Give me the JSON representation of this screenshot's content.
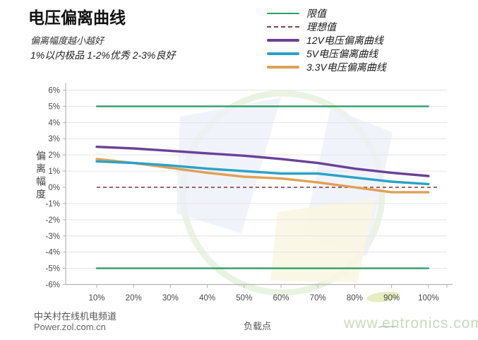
{
  "header": {
    "title": "电压偏离曲线",
    "subtitle": "偏离幅度越小越好",
    "note": "1%以内极品 1-2%优秀  2-3%良好"
  },
  "legend": {
    "items": [
      {
        "label": "限值",
        "color": "#2d9e68",
        "line_style": "solid",
        "thickness": 2
      },
      {
        "label": "理想值",
        "color": "#7d4545",
        "line_style": "dashed",
        "thickness": 2
      },
      {
        "label": "12V电压偏离曲线",
        "color": "#6b4199",
        "line_style": "solid",
        "thickness": 4
      },
      {
        "label": "5V电压偏离曲线",
        "color": "#29a3c8",
        "line_style": "solid",
        "thickness": 4
      },
      {
        "label": "3.3V电压偏离曲线",
        "color": "#dfa055",
        "line_style": "solid",
        "thickness": 4
      }
    ]
  },
  "chart_data": {
    "type": "line",
    "title": "电压偏离曲线",
    "xlabel": "负载点",
    "ylabel": "偏离幅度",
    "ylim": [
      -6,
      6
    ],
    "grid": true,
    "legend_position": "top-right",
    "x": [
      10,
      20,
      30,
      40,
      50,
      60,
      70,
      80,
      90,
      100
    ],
    "x_tick_labels": [
      "10%",
      "20%",
      "30%",
      "40%",
      "50%",
      "60%",
      "70%",
      "80%",
      "90%",
      "100%"
    ],
    "y_ticks": [
      {
        "value": 6,
        "label": "6%"
      },
      {
        "value": 5,
        "label": "5%"
      },
      {
        "value": 4,
        "label": "4%"
      },
      {
        "value": 3,
        "label": "3%"
      },
      {
        "value": 2,
        "label": "2%"
      },
      {
        "value": 1,
        "label": "1%"
      },
      {
        "value": 0,
        "label": "0%"
      },
      {
        "value": -1,
        "label": "-1%"
      },
      {
        "value": -2,
        "label": "-2%"
      },
      {
        "value": -3,
        "label": "-3%"
      },
      {
        "value": -4,
        "label": "-4%"
      },
      {
        "value": -5,
        "label": "-5%"
      },
      {
        "value": -6,
        "label": "-6%"
      }
    ],
    "limit_lines": {
      "label": "限值",
      "upper": 5,
      "lower": -5,
      "color": "#2d9e68"
    },
    "ideal_line": {
      "label": "理想值",
      "value": 0,
      "color": "#8b2f2f",
      "style": "dashed"
    },
    "series": [
      {
        "name": "12V电压偏离曲线",
        "color": "#6b4199",
        "values": [
          2.5,
          2.4,
          2.25,
          2.1,
          1.95,
          1.75,
          1.5,
          1.15,
          0.9,
          0.7
        ]
      },
      {
        "name": "5V电压偏离曲线",
        "color": "#29a3c8",
        "values": [
          1.6,
          1.5,
          1.35,
          1.15,
          1.0,
          0.85,
          0.85,
          0.6,
          0.35,
          0.2
        ]
      },
      {
        "name": "3.3V电压偏离曲线",
        "color": "#dfa055",
        "values": [
          1.75,
          1.5,
          1.2,
          0.9,
          0.65,
          0.55,
          0.3,
          0.0,
          -0.3,
          -0.3
        ]
      }
    ]
  },
  "footer": {
    "source_line1": "中关村在线机电频道",
    "source_line2": "Power.zol.com.cn"
  },
  "watermark": {
    "text": "www.entronics.com",
    "color": "#c3ddba"
  }
}
